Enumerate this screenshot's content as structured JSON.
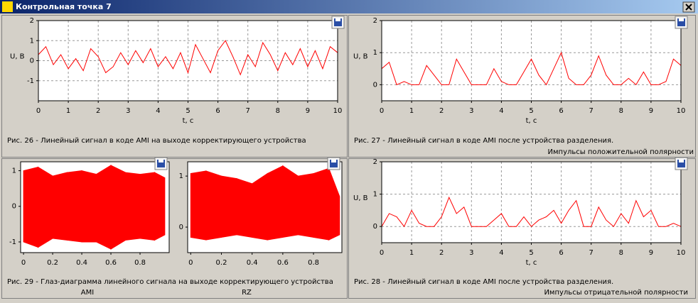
{
  "window": {
    "title": "Контрольная точка 7"
  },
  "captions": {
    "fig26": "Рис. 26 - Линейный сигнал в коде AMI на выходе корректирующего устройства",
    "fig27": "Рис. 27 - Линейный сигнал в коде AMI после устройства разделения.",
    "fig27_note": "Импульсы положительной полярности",
    "fig29": "Рис. 29 - Глаз-диаграмма линейного сигнала на выходе корректирующего устройства",
    "fig29_ami": "AMI",
    "fig29_rz": "RZ",
    "fig28": "Рис. 28 - Линейный сигнал в коде AMI после устройства разделения.",
    "fig28_note": "Импульсы отрицательной полярности"
  },
  "chart_data": [
    {
      "type": "line",
      "xlabel": "t, c",
      "ylabel": "U, B",
      "color": "#ff0000",
      "grid": true,
      "xlim": [
        0,
        10
      ],
      "xticks": [
        0,
        1,
        2,
        3,
        4,
        5,
        6,
        7,
        8,
        9,
        10
      ],
      "ylim": [
        -2,
        2
      ],
      "yticks": [
        -1,
        0,
        1,
        2
      ],
      "x": [
        0,
        0.25,
        0.5,
        0.75,
        1,
        1.25,
        1.5,
        1.75,
        2,
        2.25,
        2.5,
        2.75,
        3,
        3.25,
        3.5,
        3.75,
        4,
        4.25,
        4.5,
        4.75,
        5,
        5.25,
        5.5,
        5.75,
        6,
        6.25,
        6.5,
        6.75,
        7,
        7.25,
        7.5,
        7.75,
        8,
        8.25,
        8.5,
        8.75,
        9,
        9.25,
        9.5,
        9.75,
        10
      ],
      "values": [
        0.3,
        0.7,
        -0.2,
        0.3,
        -0.4,
        0.1,
        -0.5,
        0.6,
        0.2,
        -0.6,
        -0.3,
        0.4,
        -0.2,
        0.5,
        -0.1,
        0.6,
        -0.3,
        0.2,
        -0.4,
        0.4,
        -0.6,
        0.8,
        0.1,
        -0.6,
        0.5,
        1.0,
        0.2,
        -0.7,
        0.3,
        -0.3,
        0.9,
        0.3,
        -0.5,
        0.4,
        -0.2,
        0.6,
        -0.3,
        0.5,
        -0.4,
        0.7,
        0.4
      ]
    },
    {
      "type": "line",
      "xlabel": "t, c",
      "ylabel": "U, B",
      "color": "#ff0000",
      "grid": true,
      "xlim": [
        0,
        10
      ],
      "xticks": [
        0,
        1,
        2,
        3,
        4,
        5,
        6,
        7,
        8,
        9,
        10
      ],
      "ylim": [
        -0.5,
        2
      ],
      "yticks": [
        0,
        1,
        2
      ],
      "x": [
        0,
        0.25,
        0.5,
        0.75,
        1,
        1.25,
        1.5,
        1.75,
        2,
        2.25,
        2.5,
        2.75,
        3,
        3.25,
        3.5,
        3.75,
        4,
        4.25,
        4.5,
        4.75,
        5,
        5.25,
        5.5,
        5.75,
        6,
        6.25,
        6.5,
        6.75,
        7,
        7.25,
        7.5,
        7.75,
        8,
        8.25,
        8.5,
        8.75,
        9,
        9.25,
        9.5,
        9.75,
        10
      ],
      "values": [
        0.5,
        0.7,
        0,
        0.1,
        0,
        0,
        0.6,
        0.3,
        0,
        0,
        0.8,
        0.4,
        0,
        0,
        0,
        0.5,
        0.1,
        0,
        0,
        0.4,
        0.8,
        0.3,
        0,
        0.5,
        1.0,
        0.2,
        0,
        0,
        0.3,
        0.9,
        0.3,
        0,
        0,
        0.2,
        0,
        0.4,
        0,
        0,
        0.1,
        0.8,
        0.6
      ]
    },
    {
      "type": "band",
      "color": "#ff0000",
      "grid": false,
      "xlim": [
        -0.02,
        1
      ],
      "xticks": [
        0,
        0.2,
        0.4,
        0.6,
        0.8
      ],
      "ylim": [
        -1.3,
        1.25
      ],
      "yticks": [
        -1,
        0,
        1
      ],
      "x": [
        0,
        0.1,
        0.2,
        0.3,
        0.4,
        0.5,
        0.6,
        0.7,
        0.8,
        0.9,
        0.97
      ],
      "upper": [
        1.0,
        1.1,
        0.85,
        0.95,
        1.0,
        0.9,
        1.15,
        0.95,
        0.9,
        0.95,
        0.8
      ],
      "lower": [
        -1.0,
        -1.15,
        -0.9,
        -0.95,
        -1.0,
        -1.0,
        -1.2,
        -0.95,
        -0.9,
        -0.95,
        -0.8
      ]
    },
    {
      "type": "band",
      "color": "#ff0000",
      "grid": false,
      "xlim": [
        -0.02,
        0.985
      ],
      "xticks": [
        0,
        0.2,
        0.4,
        0.6,
        0.8
      ],
      "ylim": [
        -0.5,
        1.28
      ],
      "yticks": [
        0,
        1
      ],
      "x": [
        0,
        0.1,
        0.2,
        0.3,
        0.4,
        0.5,
        0.6,
        0.7,
        0.8,
        0.9,
        0.97
      ],
      "upper": [
        1.05,
        1.1,
        1.0,
        0.95,
        0.85,
        1.05,
        1.2,
        1.0,
        1.05,
        1.15,
        0.6
      ],
      "lower": [
        -0.2,
        -0.25,
        -0.2,
        -0.15,
        -0.2,
        -0.25,
        -0.2,
        -0.15,
        -0.2,
        -0.25,
        -0.15
      ]
    },
    {
      "type": "line",
      "xlabel": "t, c",
      "ylabel": "U, B",
      "color": "#ff0000",
      "grid": true,
      "xlim": [
        0,
        10
      ],
      "xticks": [
        0,
        1,
        2,
        3,
        4,
        5,
        6,
        7,
        8,
        9,
        10
      ],
      "ylim": [
        -0.5,
        2
      ],
      "yticks": [
        0,
        1,
        2
      ],
      "x": [
        0,
        0.25,
        0.5,
        0.75,
        1,
        1.25,
        1.5,
        1.75,
        2,
        2.25,
        2.5,
        2.75,
        3,
        3.25,
        3.5,
        3.75,
        4,
        4.25,
        4.5,
        4.75,
        5,
        5.25,
        5.5,
        5.75,
        6,
        6.25,
        6.5,
        6.75,
        7,
        7.25,
        7.5,
        7.75,
        8,
        8.25,
        8.5,
        8.75,
        9,
        9.25,
        9.5,
        9.75,
        10
      ],
      "values": [
        0,
        0.4,
        0.3,
        0,
        0.5,
        0.1,
        0,
        0,
        0.3,
        0.9,
        0.4,
        0.6,
        0,
        0,
        0,
        0.2,
        0.4,
        0,
        0,
        0.3,
        0,
        0.2,
        0.3,
        0.5,
        0.1,
        0.5,
        0.8,
        0,
        0,
        0.6,
        0.2,
        0,
        0.4,
        0.1,
        0.8,
        0.3,
        0.5,
        0,
        0,
        0.1,
        0
      ]
    }
  ]
}
